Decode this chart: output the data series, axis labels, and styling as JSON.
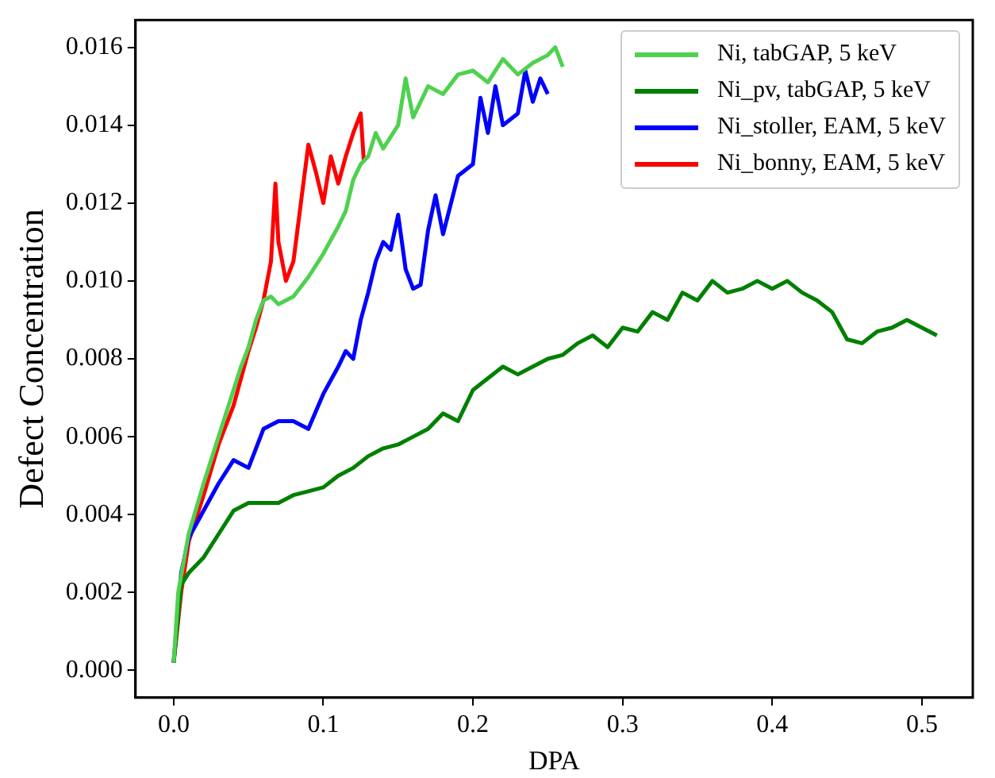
{
  "chart_data": {
    "type": "line",
    "xlabel": "DPA",
    "ylabel": "Defect Concentration",
    "xlim": [
      -0.0255,
      0.534
    ],
    "xticks": [
      {
        "value": 0,
        "label": "0.0"
      },
      0.1,
      0.2,
      0.3,
      0.4,
      0.5
    ],
    "ylim": [
      -0.0007,
      0.0167
    ],
    "yticks": [
      {
        "value": 0,
        "label": "0.000"
      },
      0.002,
      0.004,
      0.006,
      0.008,
      {
        "value": 0.01,
        "label": "0.010"
      },
      0.012,
      0.014,
      0.016
    ],
    "grid": false,
    "legend": "top right",
    "marker": "none",
    "line_style": "solid",
    "series": [
      {
        "name": "Ni, tabGAP, 5 keV",
        "color": "#4fd150",
        "x": [
          0,
          0.003,
          0.01,
          0.02,
          0.03,
          0.04,
          0.045,
          0.05,
          0.055,
          0.06,
          0.065,
          0.07,
          0.08,
          0.09,
          0.1,
          0.11,
          0.115,
          0.12,
          0.125,
          0.13,
          0.135,
          0.14,
          0.15,
          0.155,
          0.16,
          0.17,
          0.18,
          0.19,
          0.2,
          0.21,
          0.22,
          0.23,
          0.24,
          0.25,
          0.255,
          0.26
        ],
        "values": [
          0.0002,
          0.002,
          0.0035,
          0.0048,
          0.006,
          0.0072,
          0.0078,
          0.0083,
          0.009,
          0.0095,
          0.0096,
          0.0094,
          0.0096,
          0.0101,
          0.0107,
          0.0114,
          0.0118,
          0.0126,
          0.013,
          0.0132,
          0.0138,
          0.0134,
          0.014,
          0.0152,
          0.0142,
          0.015,
          0.0148,
          0.0153,
          0.0154,
          0.0151,
          0.0157,
          0.0153,
          0.0156,
          0.0158,
          0.016,
          0.0155
        ]
      },
      {
        "name": "Ni_pv, tabGAP, 5 keV",
        "color": "#008000",
        "x": [
          0,
          0.005,
          0.01,
          0.02,
          0.03,
          0.04,
          0.05,
          0.06,
          0.07,
          0.08,
          0.09,
          0.1,
          0.11,
          0.12,
          0.13,
          0.14,
          0.15,
          0.16,
          0.17,
          0.18,
          0.19,
          0.2,
          0.21,
          0.22,
          0.23,
          0.24,
          0.25,
          0.26,
          0.27,
          0.28,
          0.29,
          0.3,
          0.31,
          0.32,
          0.33,
          0.34,
          0.35,
          0.36,
          0.37,
          0.38,
          0.39,
          0.4,
          0.41,
          0.42,
          0.43,
          0.44,
          0.45,
          0.46,
          0.47,
          0.48,
          0.49,
          0.5,
          0.51
        ],
        "values": [
          0.0002,
          0.0022,
          0.0025,
          0.0029,
          0.0035,
          0.0041,
          0.0043,
          0.0043,
          0.0043,
          0.0045,
          0.0046,
          0.0047,
          0.005,
          0.0052,
          0.0055,
          0.0057,
          0.0058,
          0.006,
          0.0062,
          0.0066,
          0.0064,
          0.0072,
          0.0075,
          0.0078,
          0.0076,
          0.0078,
          0.008,
          0.0081,
          0.0084,
          0.0086,
          0.0083,
          0.0088,
          0.0087,
          0.0092,
          0.009,
          0.0097,
          0.0095,
          0.01,
          0.0097,
          0.0098,
          0.01,
          0.0098,
          0.01,
          0.0097,
          0.0095,
          0.0092,
          0.0085,
          0.0084,
          0.0087,
          0.0088,
          0.009,
          0.0088,
          0.0086
        ]
      },
      {
        "name": "Ni_stoller, EAM, 5 keV",
        "color": "#0000ff",
        "x": [
          0,
          0.005,
          0.01,
          0.02,
          0.03,
          0.04,
          0.05,
          0.06,
          0.07,
          0.08,
          0.09,
          0.1,
          0.11,
          0.115,
          0.12,
          0.125,
          0.13,
          0.135,
          0.14,
          0.145,
          0.15,
          0.155,
          0.16,
          0.165,
          0.17,
          0.175,
          0.18,
          0.19,
          0.2,
          0.205,
          0.21,
          0.215,
          0.22,
          0.23,
          0.235,
          0.24,
          0.245,
          0.25
        ],
        "values": [
          0.0002,
          0.0025,
          0.0034,
          0.0041,
          0.0048,
          0.0054,
          0.0052,
          0.0062,
          0.0064,
          0.0064,
          0.0062,
          0.0071,
          0.0078,
          0.0082,
          0.008,
          0.009,
          0.0097,
          0.0105,
          0.011,
          0.0108,
          0.0117,
          0.0103,
          0.0098,
          0.0099,
          0.0113,
          0.0122,
          0.0112,
          0.0127,
          0.013,
          0.0147,
          0.0138,
          0.015,
          0.014,
          0.0143,
          0.0154,
          0.0146,
          0.0152,
          0.0148
        ]
      },
      {
        "name": "Ni_bonny, EAM, 5 keV",
        "color": "#ff0000",
        "x": [
          0,
          0.005,
          0.01,
          0.02,
          0.03,
          0.04,
          0.05,
          0.055,
          0.06,
          0.065,
          0.068,
          0.07,
          0.075,
          0.08,
          0.085,
          0.09,
          0.095,
          0.1,
          0.105,
          0.11,
          0.115,
          0.12,
          0.125,
          0.127
        ],
        "values": [
          0.0002,
          0.002,
          0.0033,
          0.0045,
          0.0058,
          0.0068,
          0.0082,
          0.0088,
          0.0095,
          0.0105,
          0.0125,
          0.011,
          0.01,
          0.0105,
          0.012,
          0.0135,
          0.0128,
          0.012,
          0.0132,
          0.0125,
          0.0132,
          0.0138,
          0.0143,
          0.0131
        ]
      }
    ]
  }
}
